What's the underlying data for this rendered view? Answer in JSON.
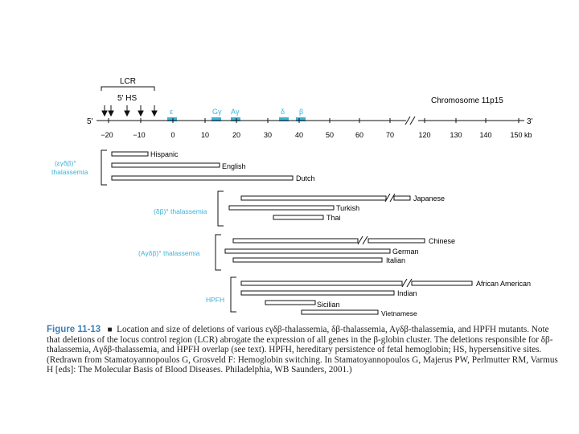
{
  "colors": {
    "accent": "#3bb3d8",
    "ink": "#111111",
    "figure_label": "#3c7fb8"
  },
  "chromosome_label": "Chromosome 11p15",
  "lcr": {
    "label": "LCR",
    "hs_label": "5' HS"
  },
  "end_labels": {
    "left": "5'",
    "right": "3'"
  },
  "genes": [
    "ε",
    "Gγ",
    "Aγ",
    "δ",
    "β"
  ],
  "axis": {
    "ticks": [
      "−20",
      "−10",
      "0",
      "10",
      "20",
      "30",
      "40",
      "50",
      "60",
      "70",
      "120",
      "130",
      "140",
      "150 kb"
    ]
  },
  "groups": [
    {
      "label_lines": [
        "(εγδβ)°",
        "thalassemia"
      ],
      "deletions": [
        "Hispanic",
        "English",
        "Dutch"
      ]
    },
    {
      "label_lines": [
        "(δβ)° thalassemia"
      ],
      "deletions": [
        "Japanese",
        "Turkish",
        "Thai"
      ]
    },
    {
      "label_lines": [
        "(Aγδβ)° thalassemia"
      ],
      "deletions": [
        "Chinese",
        "German",
        "Italian"
      ]
    },
    {
      "label_lines": [
        "HPFH"
      ],
      "deletions": [
        "African American",
        "Indian",
        "Sicilian",
        "Vietnamese"
      ]
    }
  ],
  "caption": {
    "label": "Figure 11-13",
    "symbol": "■",
    "text": "Location and size of deletions of various εγδβ-thalassemia, δβ-thalassemia, Aγδβ-thalassemia, and HPFH mutants. Note that deletions of the locus control region (LCR) abrogate the expression of all genes in the β-globin cluster. The deletions responsible for δβ-thalassemia, Aγδβ-thalassemia, and HPFH overlap (see text). HPFH, hereditary persistence of fetal hemoglobin; HS, hypersensitive sites. (Redrawn from Stamatoyannopoulos G, Grosveld F: Hemoglobin switching. In Stamatoyannopoulos G, Majerus PW, Perlmutter RM, Varmus H [eds]: The Molecular Basis of Blood Diseases. Philadelphia, WB Saunders, 2001.)"
  }
}
